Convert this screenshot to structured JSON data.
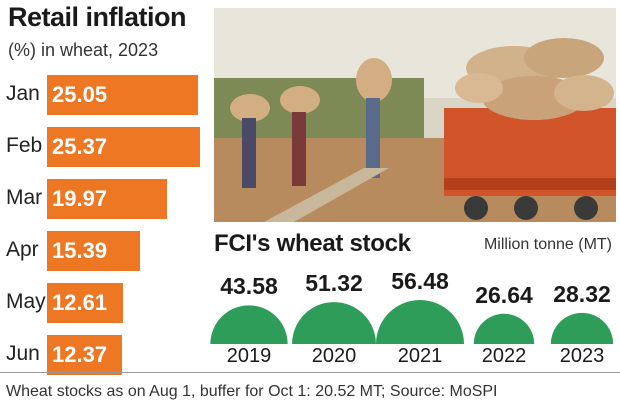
{
  "retail": {
    "title": "Retail inflation",
    "subtitle": "(%) in wheat, 2023"
  },
  "fci": {
    "title": "FCI's wheat stock",
    "unit": "Million tonne (MT)"
  },
  "footnote": "Wheat stocks as on Aug 1, buffer for Oct 1: 20.52 MT; Source: MoSPI",
  "colors": {
    "bar": "#ee7724",
    "dome": "#2e9d59"
  },
  "chart_data": [
    {
      "type": "bar",
      "orientation": "horizontal",
      "title": "Retail inflation",
      "subtitle": "(%) in wheat, 2023",
      "categories": [
        "Jan",
        "Feb",
        "Mar",
        "Apr",
        "May",
        "Jun"
      ],
      "values": [
        25.05,
        25.37,
        19.97,
        15.39,
        12.61,
        12.37
      ],
      "value_labels": [
        "25.05",
        "25.37",
        "19.97",
        "15.39",
        "12.61",
        "12.37"
      ]
    },
    {
      "type": "bar",
      "style": "proportional-dome",
      "title": "FCI's wheat stock",
      "unit": "Million tonne (MT)",
      "categories": [
        "2019",
        "2020",
        "2021",
        "2022",
        "2023"
      ],
      "values": [
        43.58,
        51.32,
        56.48,
        26.64,
        28.32
      ],
      "value_labels": [
        "43.58",
        "51.32",
        "56.48",
        "26.64",
        "28.32"
      ]
    }
  ]
}
